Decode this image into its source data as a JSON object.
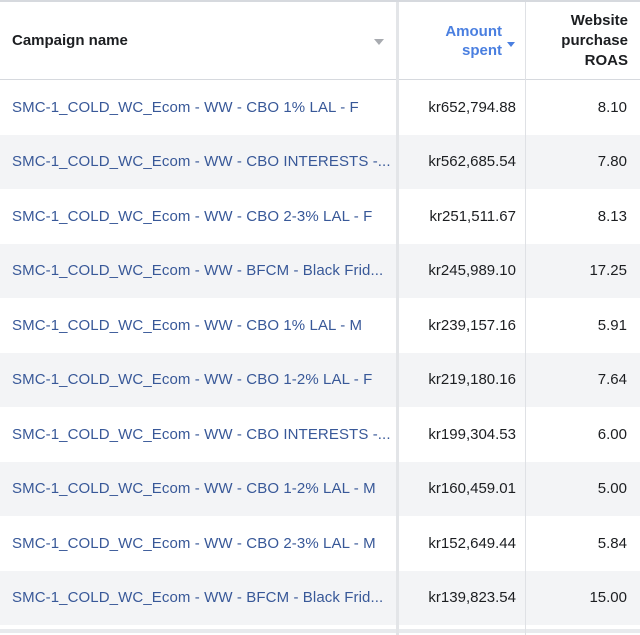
{
  "columns": {
    "campaign_name": "Campaign name",
    "amount_spent_line1": "Amount",
    "amount_spent_line2": "spent",
    "roas_line1": "Website",
    "roas_line2": "purchase",
    "roas_line3": "ROAS"
  },
  "sort": {
    "column": "Amount spent",
    "direction": "descending"
  },
  "rows": [
    {
      "name": "SMC-1_COLD_WC_Ecom - WW - CBO 1% LAL - F",
      "amount": "kr652,794.88",
      "roas": "8.10"
    },
    {
      "name": "SMC-1_COLD_WC_Ecom - WW - CBO INTERESTS -...",
      "amount": "kr562,685.54",
      "roas": "7.80"
    },
    {
      "name": "SMC-1_COLD_WC_Ecom - WW - CBO 2-3% LAL - F",
      "amount": "kr251,511.67",
      "roas": "8.13"
    },
    {
      "name": "SMC-1_COLD_WC_Ecom - WW - BFCM - Black Frid...",
      "amount": "kr245,989.10",
      "roas": "17.25"
    },
    {
      "name": "SMC-1_COLD_WC_Ecom - WW - CBO 1% LAL - M",
      "amount": "kr239,157.16",
      "roas": "5.91"
    },
    {
      "name": "SMC-1_COLD_WC_Ecom - WW - CBO 1-2% LAL - F",
      "amount": "kr219,180.16",
      "roas": "7.64"
    },
    {
      "name": "SMC-1_COLD_WC_Ecom - WW - CBO INTERESTS -...",
      "amount": "kr199,304.53",
      "roas": "6.00"
    },
    {
      "name": "SMC-1_COLD_WC_Ecom - WW - CBO 1-2% LAL - M",
      "amount": "kr160,459.01",
      "roas": "5.00"
    },
    {
      "name": "SMC-1_COLD_WC_Ecom - WW - CBO 2-3% LAL - M",
      "amount": "kr152,649.44",
      "roas": "5.84"
    },
    {
      "name": "SMC-1_COLD_WC_Ecom - WW - BFCM - Black Frid...",
      "amount": "kr139,823.54",
      "roas": "15.00"
    }
  ],
  "colors": {
    "link": "#385898",
    "sorted_header": "#4a7fe0",
    "alt_row": "#f3f4f6"
  }
}
